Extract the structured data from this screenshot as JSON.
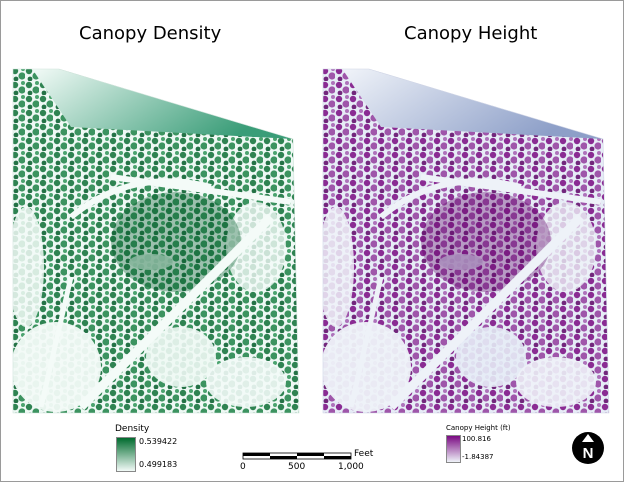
{
  "panels": {
    "density": {
      "title": "Canopy Density",
      "colors": {
        "high": "#006b2e",
        "low": "#f2faf7"
      }
    },
    "height": {
      "title": "Canopy Height",
      "colors": {
        "high": "#7a0a82",
        "low": "#eef2f8"
      }
    }
  },
  "legend_density": {
    "title": "Density",
    "high_label": "0.539422",
    "low_label": "0.499183"
  },
  "legend_height": {
    "title": "Canopy Height (ft)",
    "high_label": "100.816",
    "low_label": "-1.84387"
  },
  "scale_bar": {
    "unit": "Feet",
    "ticks": [
      "0",
      "500",
      "1,000"
    ]
  },
  "north_arrow": {
    "icon": "north-arrow-icon",
    "letter": "N"
  }
}
